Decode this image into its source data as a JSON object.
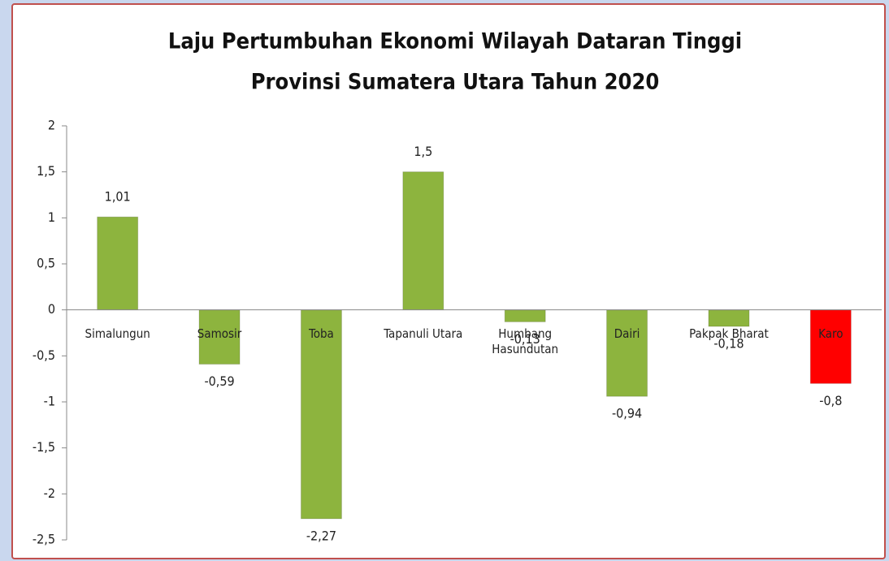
{
  "chart_data": {
    "type": "bar",
    "title": [
      "Laju Pertumbuhan Ekonomi Wilayah Dataran Tinggi",
      "Provinsi Sumatera Utara Tahun 2020"
    ],
    "categories": [
      "Simalungun",
      "Samosir",
      "Toba",
      "Tapanuli Utara",
      "Humbang Hasundutan",
      "Dairi",
      "Pakpak Bharat",
      "Karo"
    ],
    "values": [
      1.01,
      -0.59,
      -2.27,
      1.5,
      -0.13,
      -0.94,
      -0.18,
      -0.8
    ],
    "value_labels": [
      "1,01",
      "-0,59",
      "-2,27",
      "1,5",
      "-0,13",
      "-0,94",
      "-0,18",
      "-0,8"
    ],
    "colors": [
      "#8db43e",
      "#8db43e",
      "#8db43e",
      "#8db43e",
      "#8db43e",
      "#8db43e",
      "#8db43e",
      "#ff0000"
    ],
    "ylim": [
      -2.5,
      2
    ],
    "yticks": [
      {
        "value": -2.5,
        "label": "-2,5"
      },
      -2,
      {
        "value": -1.5,
        "label": "-1,5"
      },
      -1,
      {
        "value": -0.5,
        "label": "-0,5"
      },
      0,
      {
        "value": 0.5,
        "label": "0,5"
      },
      1,
      {
        "value": 1.5,
        "label": "1,5"
      },
      2
    ],
    "grid": false
  }
}
